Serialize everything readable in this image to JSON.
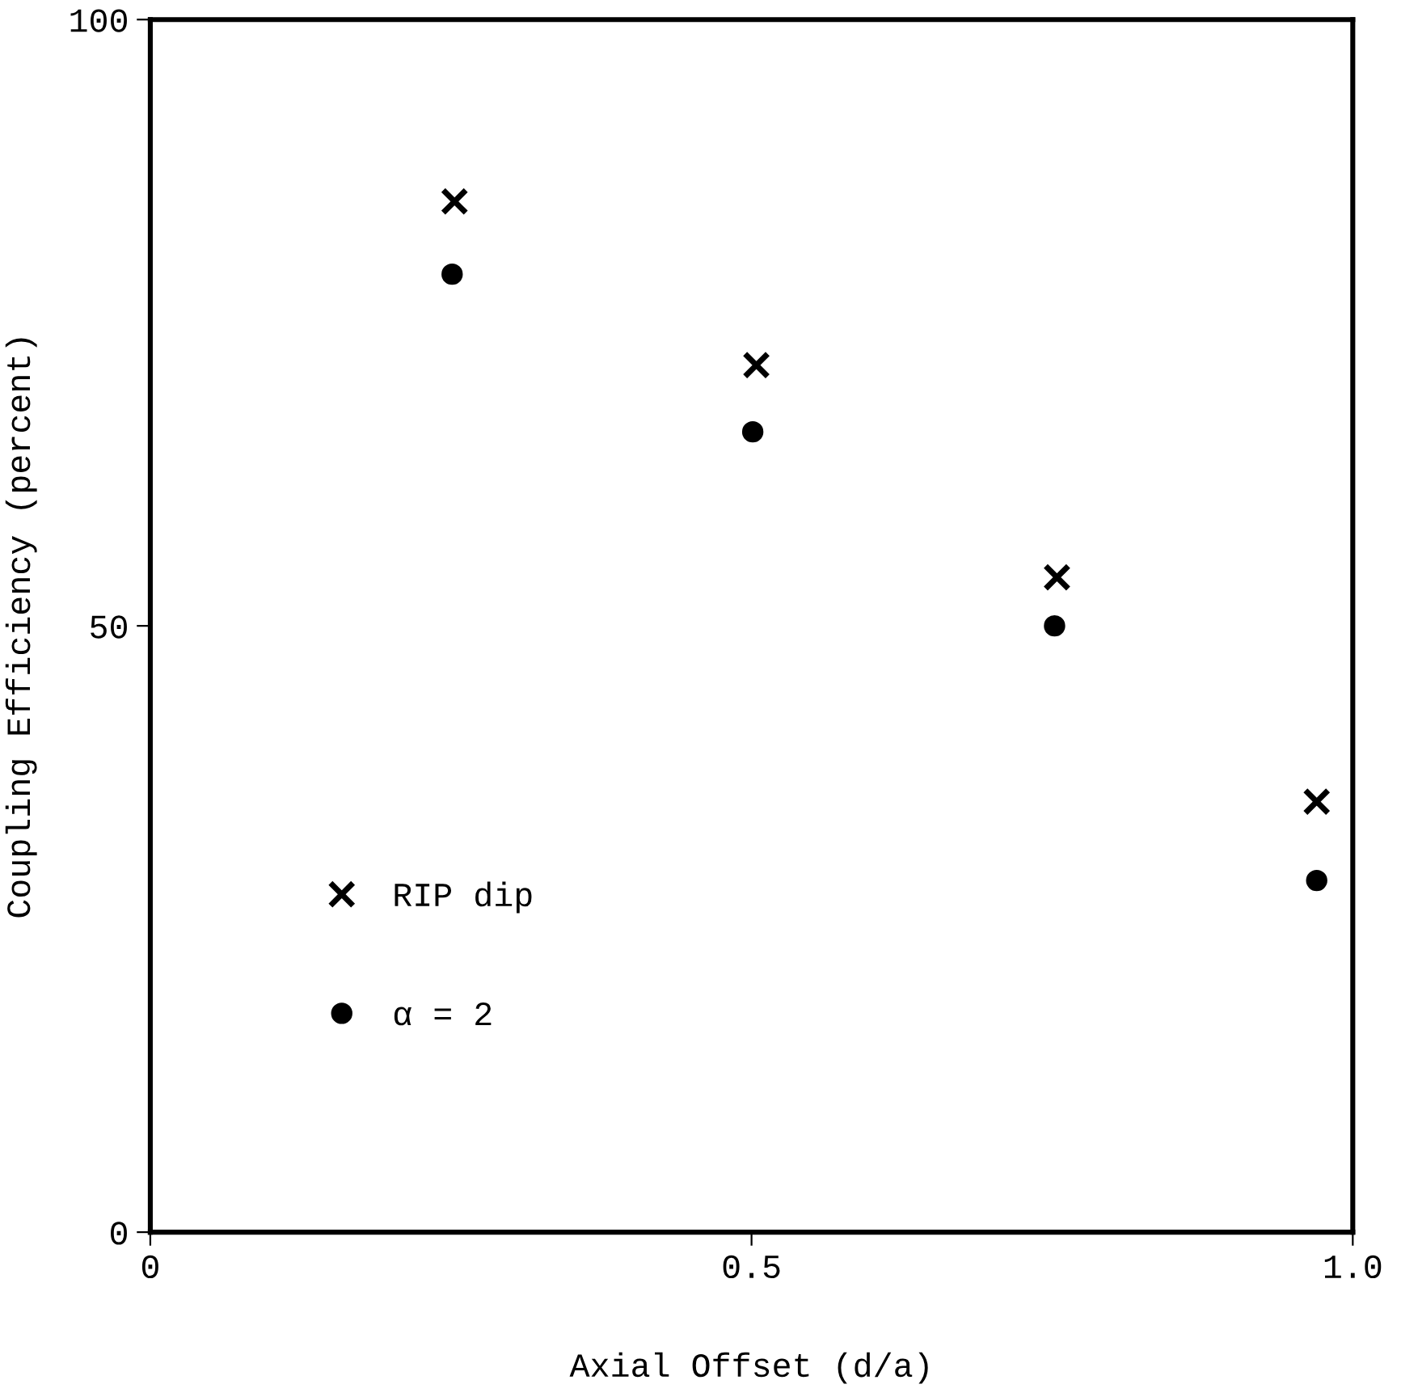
{
  "chart_data": {
    "type": "scatter",
    "xlabel": "Axial Offset (d/a)",
    "ylabel": "Coupling Efficiency (percent)",
    "xlim": [
      0,
      1.0
    ],
    "ylim": [
      0,
      100
    ],
    "xticks": [
      0,
      0.5,
      {
        "value": 1.0,
        "label": "1.0"
      }
    ],
    "yticks": [
      0,
      50,
      100
    ],
    "grid": false,
    "legend": "bottom left",
    "series": [
      {
        "name": "RIP dip",
        "color": "#000000",
        "marker": "cross",
        "x": [
          0.253,
          0.504,
          0.754,
          0.97
        ],
        "values": [
          85,
          71.5,
          54,
          35.5
        ]
      },
      {
        "name": "α = 2",
        "color": "#000000",
        "marker": "circle",
        "x": [
          0.251,
          0.501,
          0.752,
          0.97
        ],
        "values": [
          79,
          66,
          50,
          29
        ]
      }
    ]
  }
}
